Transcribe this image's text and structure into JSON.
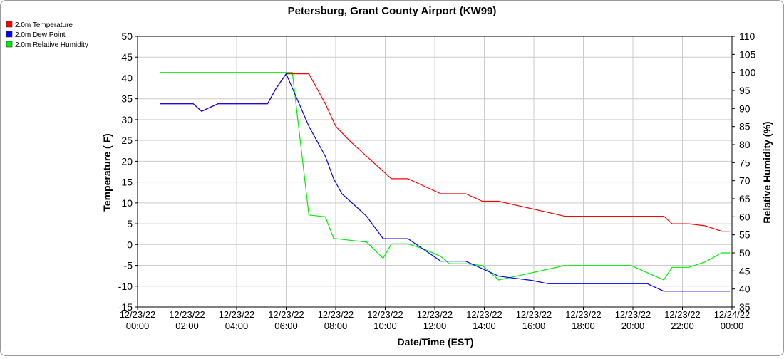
{
  "chart_data": {
    "type": "line",
    "title": "Petersburg, Grant County Airport (KW99)",
    "xlabel": "Date/Time (EST)",
    "ylabel": "Temperature ( F)",
    "y2label": "Relative Humidity (%)",
    "x_ticks": [
      {
        "date": "12/23/22",
        "time": "00:00"
      },
      {
        "date": "12/23/22",
        "time": "02:00"
      },
      {
        "date": "12/23/22",
        "time": "04:00"
      },
      {
        "date": "12/23/22",
        "time": "06:00"
      },
      {
        "date": "12/23/22",
        "time": "08:00"
      },
      {
        "date": "12/23/22",
        "time": "10:00"
      },
      {
        "date": "12/23/22",
        "time": "12:00"
      },
      {
        "date": "12/23/22",
        "time": "14:00"
      },
      {
        "date": "12/23/22",
        "time": "16:00"
      },
      {
        "date": "12/23/22",
        "time": "18:00"
      },
      {
        "date": "12/23/22",
        "time": "20:00"
      },
      {
        "date": "12/23/22",
        "time": "22:00"
      },
      {
        "date": "12/24/22",
        "time": "00:00"
      }
    ],
    "xlim": [
      "12/23/22 00:00",
      "12/24/22 00:00"
    ],
    "ylim": [
      -15,
      50
    ],
    "y_ticks": [
      50,
      45,
      40,
      35,
      30,
      25,
      20,
      15,
      10,
      5,
      0,
      -5,
      -10,
      -15
    ],
    "y2lim": [
      35,
      110
    ],
    "y2_ticks": [
      110,
      105,
      100,
      95,
      90,
      85,
      80,
      75,
      70,
      65,
      60,
      55,
      50,
      45,
      40,
      35
    ],
    "grid": true,
    "legend_position": "top-left",
    "series": [
      {
        "name": "2.0m Temperature",
        "color": "#ff0000",
        "axis": "left",
        "x": [
          "12/23/22 00:55",
          "12/23/22 01:35",
          "12/23/22 02:15",
          "12/23/22 02:35",
          "12/23/22 03:15",
          "12/23/22 03:55",
          "12/23/22 04:35",
          "12/23/22 05:15",
          "12/23/22 05:35",
          "12/23/22 06:00",
          "12/23/22 06:15",
          "12/23/22 06:55",
          "12/23/22 07:35",
          "12/23/22 08:00",
          "12/23/22 08:35",
          "12/23/22 09:15",
          "12/23/22 09:55",
          "12/23/22 10:15",
          "12/23/22 10:55",
          "12/23/22 11:35",
          "12/23/22 12:15",
          "12/23/22 12:35",
          "12/23/22 13:15",
          "12/23/22 13:55",
          "12/23/22 14:35",
          "12/23/22 15:15",
          "12/23/22 15:55",
          "12/23/22 16:35",
          "12/23/22 17:15",
          "12/23/22 17:55",
          "12/23/22 18:35",
          "12/23/22 19:15",
          "12/23/22 19:55",
          "12/23/22 20:35",
          "12/23/22 21:15",
          "12/23/22 21:35",
          "12/23/22 22:15",
          "12/23/22 22:55",
          "12/23/22 23:35",
          "12/23/22 23:55"
        ],
        "y": [
          33.8,
          33.8,
          33.8,
          32,
          33.8,
          33.8,
          33.8,
          33.8,
          37.4,
          41,
          41,
          41,
          33.8,
          28.4,
          24.8,
          21.2,
          17.6,
          15.8,
          15.8,
          14.0,
          12.2,
          12.2,
          12.2,
          10.4,
          10.4,
          9.5,
          8.6,
          7.7,
          6.8,
          6.8,
          6.8,
          6.8,
          6.8,
          6.8,
          6.8,
          5,
          5,
          4.5,
          3.2,
          3.2
        ]
      },
      {
        "name": "2.0m Dew Point",
        "color": "#0000ff",
        "axis": "left",
        "x": [
          "12/23/22 00:55",
          "12/23/22 01:35",
          "12/23/22 02:15",
          "12/23/22 02:35",
          "12/23/22 03:15",
          "12/23/22 03:55",
          "12/23/22 04:35",
          "12/23/22 05:15",
          "12/23/22 05:35",
          "12/23/22 06:00",
          "12/23/22 06:55",
          "12/23/22 07:35",
          "12/23/22 07:55",
          "12/23/22 08:15",
          "12/23/22 08:55",
          "12/23/22 09:15",
          "12/23/22 09:55",
          "12/23/22 10:55",
          "12/23/22 11:35",
          "12/23/22 12:15",
          "12/23/22 12:35",
          "12/23/22 13:15",
          "12/23/22 13:55",
          "12/23/22 14:35",
          "12/23/22 15:15",
          "12/23/22 15:55",
          "12/23/22 16:35",
          "12/23/22 17:15",
          "12/23/22 17:55",
          "12/23/22 18:35",
          "12/23/22 19:15",
          "12/23/22 19:55",
          "12/23/22 20:35",
          "12/23/22 21:15",
          "12/23/22 21:35",
          "12/23/22 22:15",
          "12/23/22 22:55",
          "12/23/22 23:35",
          "12/23/22 23:55"
        ],
        "y": [
          33.8,
          33.8,
          33.8,
          32,
          33.8,
          33.8,
          33.8,
          33.8,
          37.4,
          41,
          28.4,
          21.2,
          15.8,
          12.2,
          8.6,
          6.8,
          1.4,
          1.4,
          -1.3,
          -4.0,
          -4.0,
          -4.0,
          -5.8,
          -7.6,
          -8.1,
          -8.6,
          -9.4,
          -9.4,
          -9.4,
          -9.4,
          -9.4,
          -9.4,
          -9.4,
          -11.2,
          -11.2,
          -11.2,
          -11.2,
          -11.2,
          -11.2
        ]
      },
      {
        "name": "2.0m Relative Humidity",
        "color": "#00ee00",
        "axis": "right",
        "x": [
          "12/23/22 00:55",
          "12/23/22 06:00",
          "12/23/22 06:15",
          "12/23/22 06:55",
          "12/23/22 07:35",
          "12/23/22 07:55",
          "12/23/22 08:35",
          "12/23/22 09:15",
          "12/23/22 09:55",
          "12/23/22 10:15",
          "12/23/22 10:55",
          "12/23/22 11:35",
          "12/23/22 12:15",
          "12/23/22 12:35",
          "12/23/22 13:15",
          "12/23/22 13:55",
          "12/23/22 14:35",
          "12/23/22 15:15",
          "12/23/22 15:55",
          "12/23/22 16:35",
          "12/23/22 17:15",
          "12/23/22 17:55",
          "12/23/22 18:35",
          "12/23/22 19:15",
          "12/23/22 19:55",
          "12/23/22 20:35",
          "12/23/22 21:15",
          "12/23/22 21:35",
          "12/23/22 22:15",
          "12/23/22 22:55",
          "12/23/22 23:35",
          "12/23/22 23:55"
        ],
        "y": [
          100,
          100,
          100,
          60.5,
          60,
          54,
          53.5,
          53,
          48.5,
          52.5,
          52.5,
          51,
          49,
          47,
          47,
          46.5,
          42.5,
          43.5,
          44.5,
          45.5,
          46.5,
          46.5,
          46.5,
          46.5,
          46.5,
          44.5,
          42.5,
          46,
          46,
          47.5,
          50,
          50
        ]
      }
    ]
  }
}
